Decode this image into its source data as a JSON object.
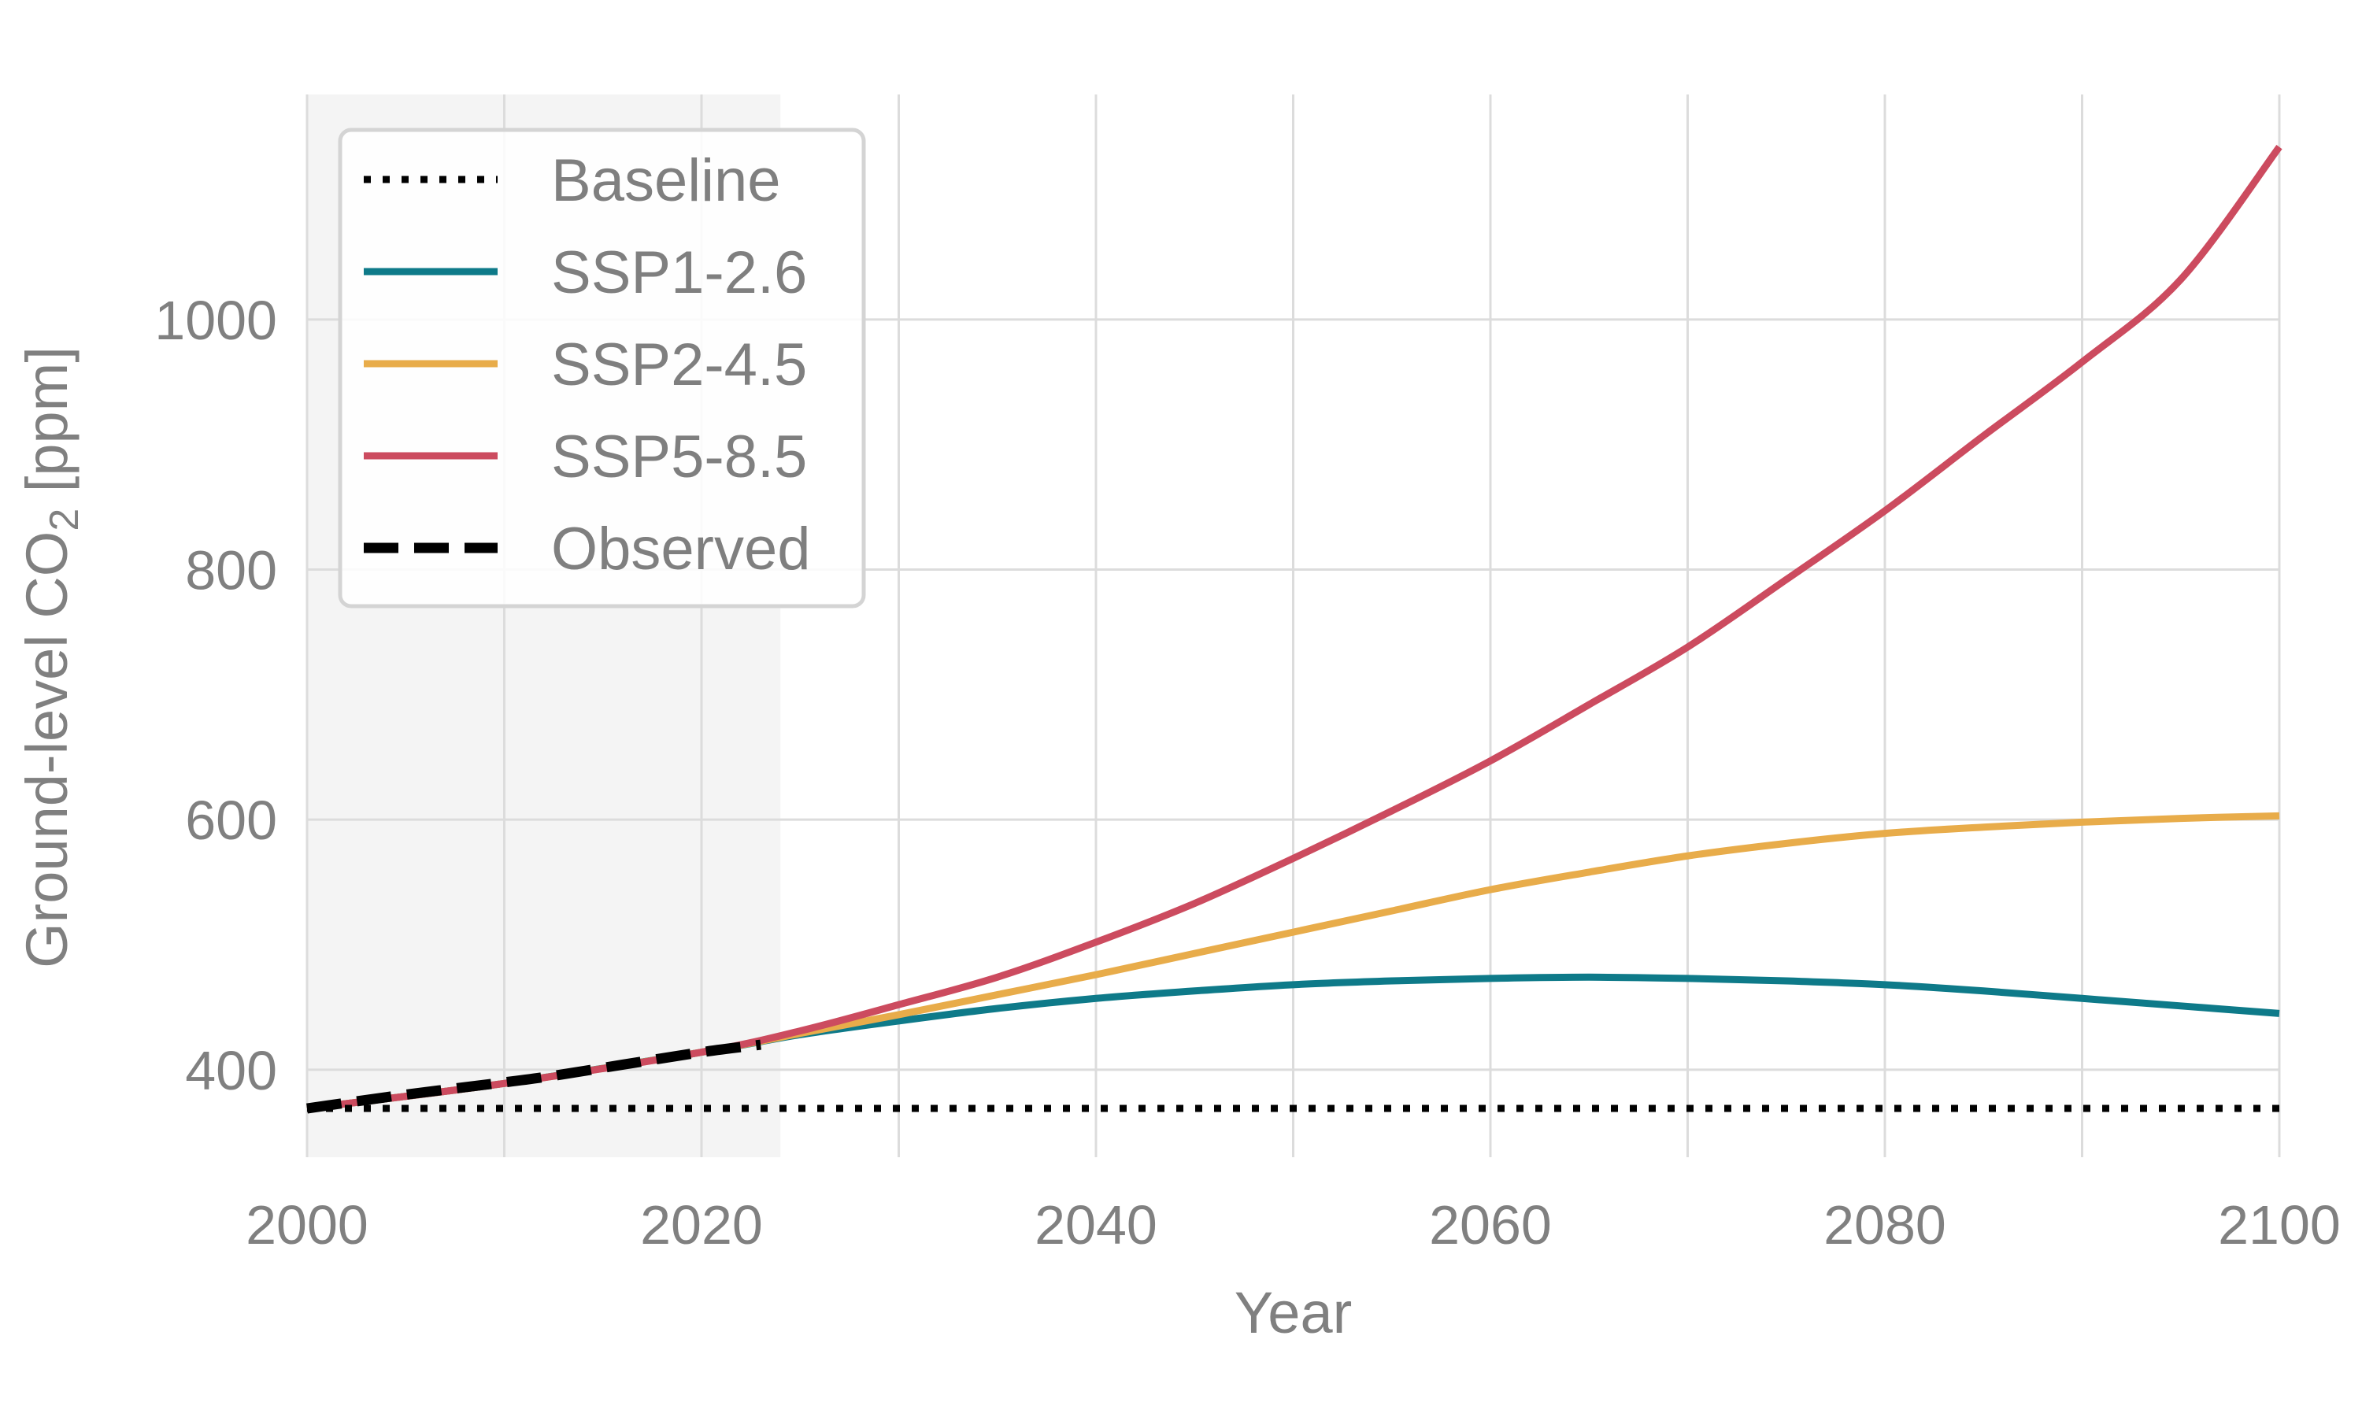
{
  "chart_data": {
    "type": "line",
    "xlabel": "Year",
    "ylabel": "Ground-level CO",
    "ylabel_sub": "2",
    "ylabel_unit": " [ppm]",
    "xlim": [
      2000,
      2100
    ],
    "ylim": [
      330,
      1180
    ],
    "xticks": [
      2000,
      2020,
      2040,
      2060,
      2080,
      2100
    ],
    "yticks": [
      400,
      600,
      800,
      1000
    ],
    "grid": true,
    "legend_position": "top-left",
    "shaded_region": {
      "x_start": 2000,
      "x_end": 2024
    },
    "series": [
      {
        "name": "Baseline",
        "style": "dotted",
        "color": "#000000",
        "x": [
          2000,
          2100
        ],
        "y": [
          369,
          369
        ]
      },
      {
        "name": "SSP1-2.6",
        "style": "solid",
        "color": "#0e7a89",
        "x": [
          2000,
          2010,
          2020,
          2025,
          2030,
          2035,
          2040,
          2045,
          2050,
          2055,
          2060,
          2065,
          2070,
          2075,
          2080,
          2085,
          2090,
          2095,
          2100
        ],
        "y": [
          369,
          389,
          414,
          428,
          439,
          449,
          457,
          463,
          468,
          471,
          473,
          474,
          473,
          471,
          468,
          463,
          457,
          451,
          445
        ]
      },
      {
        "name": "SSP2-4.5",
        "style": "solid",
        "color": "#e8ac4a",
        "x": [
          2000,
          2010,
          2020,
          2025,
          2030,
          2035,
          2040,
          2045,
          2050,
          2055,
          2060,
          2065,
          2070,
          2075,
          2080,
          2085,
          2090,
          2095,
          2100
        ],
        "y": [
          369,
          389,
          414,
          429,
          444,
          460,
          476,
          493,
          510,
          527,
          544,
          558,
          571,
          581,
          589,
          594,
          598,
          601,
          603
        ]
      },
      {
        "name": "SSP5-8.5",
        "style": "solid",
        "color": "#cc4b5f",
        "x": [
          2000,
          2010,
          2020,
          2025,
          2030,
          2035,
          2040,
          2045,
          2050,
          2055,
          2060,
          2065,
          2070,
          2075,
          2080,
          2085,
          2090,
          2095,
          2100
        ],
        "y": [
          369,
          389,
          414,
          431,
          452,
          474,
          502,
          533,
          569,
          607,
          647,
          692,
          738,
          792,
          847,
          907,
          966,
          1032,
          1138
        ]
      },
      {
        "name": "Observed",
        "style": "dashed",
        "color": "#000000",
        "x": [
          2000,
          2004,
          2008,
          2012,
          2016,
          2020,
          2023
        ],
        "y": [
          369,
          378,
          386,
          394,
          404,
          414,
          420
        ]
      }
    ]
  }
}
